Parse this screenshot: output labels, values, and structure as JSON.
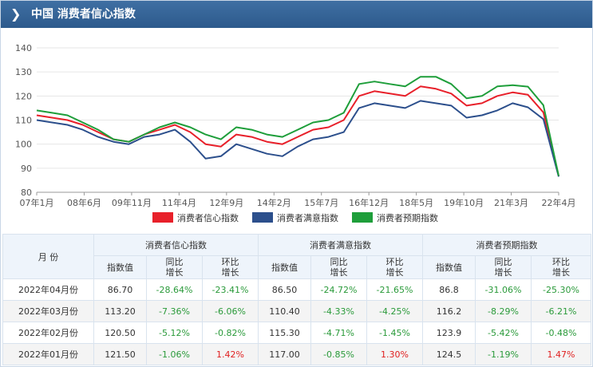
{
  "header": {
    "title": "中国 消费者信心指数"
  },
  "legend": [
    {
      "name": "消费者信心指数",
      "color": "#e8202a"
    },
    {
      "name": "消费者满意指数",
      "color": "#2c4f8c"
    },
    {
      "name": "消费者预期指数",
      "color": "#1e9e3a"
    }
  ],
  "chart_data": {
    "type": "line",
    "x_tick_labels": [
      "07年1月",
      "08年6月",
      "09年11月",
      "11年4月",
      "12年9月",
      "14年2月",
      "15年7月",
      "16年12月",
      "18年5月",
      "19年10月",
      "21年3月",
      "22年4月"
    ],
    "ylim": [
      80,
      140
    ],
    "y_ticks": [
      "80",
      "90",
      "100",
      "110",
      "120",
      "130",
      "140"
    ],
    "grid": true,
    "legend_position": "bottom",
    "series": [
      {
        "name": "消费者信心指数",
        "color": "#e8202a",
        "values": [
          112,
          111,
          110,
          108,
          105,
          102,
          101,
          104,
          106,
          108,
          105,
          100,
          99,
          104,
          103,
          101,
          100,
          103,
          106,
          107,
          110,
          120,
          122,
          121,
          120,
          124,
          123,
          121,
          116,
          117,
          120,
          121.5,
          120.5,
          113.2,
          86.7
        ]
      },
      {
        "name": "消费者满意指数",
        "color": "#2c4f8c",
        "values": [
          110,
          109,
          108,
          106,
          103,
          101,
          100,
          103,
          104,
          106,
          101,
          94,
          95,
          100,
          98,
          96,
          95,
          99,
          102,
          103,
          105,
          115,
          117,
          116,
          115,
          118,
          117,
          116,
          111,
          112,
          114,
          117,
          115.3,
          110.4,
          86.5
        ]
      },
      {
        "name": "消费者预期指数",
        "color": "#1e9e3a",
        "values": [
          114,
          113,
          112,
          109,
          106,
          102,
          101,
          104,
          107,
          109,
          107,
          104,
          102,
          107,
          106,
          104,
          103,
          106,
          109,
          110,
          113,
          125,
          126,
          125,
          124,
          128,
          128,
          125,
          119,
          120,
          124,
          124.5,
          123.9,
          116.2,
          86.8
        ]
      }
    ]
  },
  "table": {
    "month_header": "月  份",
    "groups": [
      "消费者信心指数",
      "消费者满意指数",
      "消费者预期指数"
    ],
    "sub": [
      "指数值",
      "同比增长",
      "环比增长"
    ],
    "rows": [
      {
        "month": "2022年04月份",
        "v": [
          "86.70",
          "-28.64%",
          "-23.41%",
          "86.50",
          "-24.72%",
          "-21.65%",
          "86.8",
          "-31.06%",
          "-25.30%"
        ]
      },
      {
        "month": "2022年03月份",
        "v": [
          "113.20",
          "-7.36%",
          "-6.06%",
          "110.40",
          "-4.33%",
          "-4.25%",
          "116.2",
          "-8.29%",
          "-6.21%"
        ]
      },
      {
        "month": "2022年02月份",
        "v": [
          "120.50",
          "-5.12%",
          "-0.82%",
          "115.30",
          "-4.71%",
          "-1.45%",
          "123.9",
          "-5.42%",
          "-0.48%"
        ]
      },
      {
        "month": "2022年01月份",
        "v": [
          "121.50",
          "-1.06%",
          "1.42%",
          "117.00",
          "-0.85%",
          "1.30%",
          "124.5",
          "-1.19%",
          "1.47%"
        ]
      }
    ]
  }
}
